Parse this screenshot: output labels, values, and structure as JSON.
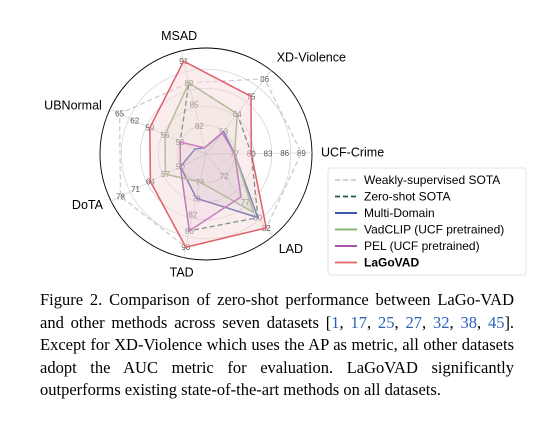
{
  "chart_data": {
    "type": "radar",
    "axes": [
      "MSAD",
      "XD-Violence",
      "UCF-Crime",
      "LAD",
      "TAD",
      "DoTA",
      "UBNormal"
    ],
    "tick_labels": [
      [
        "82",
        "85",
        "88",
        "91"
      ],
      [
        "53",
        "64",
        "75",
        "86"
      ],
      [
        "77",
        "80",
        "83",
        "86",
        "89"
      ],
      [
        "72",
        "77",
        "80",
        "82"
      ],
      [
        "74",
        "78",
        "82",
        "86",
        "90"
      ],
      [
        "50",
        "57",
        "64",
        "71",
        "78"
      ],
      [
        "53",
        "56",
        "59",
        "62",
        "65"
      ]
    ],
    "series": [
      {
        "name": "Weakly-supervised SOTA",
        "style": "dashed",
        "color": "#cccccc",
        "values": [
          88,
          86,
          89,
          82,
          90,
          78,
          65
        ]
      },
      {
        "name": "Zero-shot SOTA",
        "style": "dashed",
        "color": "#1f5a4d",
        "values": [
          88,
          64,
          80,
          80,
          86,
          50,
          53
        ]
      },
      {
        "name": "Multi-Domain",
        "style": "solid",
        "color": "#2140a0",
        "values": [
          79,
          53,
          77,
          80,
          78,
          50,
          50
        ]
      },
      {
        "name": "VadCLIP (UCF pretrained)",
        "style": "solid",
        "color": "#7fad69",
        "values": [
          88,
          64,
          77,
          79,
          74,
          57,
          56
        ]
      },
      {
        "name": "PEL (UCF pretrained)",
        "style": "solid",
        "color": "#9b3aa3",
        "values": [
          79,
          52,
          77,
          76,
          86,
          50,
          53
        ]
      },
      {
        "name": "LaGoVAD",
        "style": "solid",
        "color": "#e0606a",
        "values": [
          91,
          75,
          80,
          82,
          90,
          64,
          59
        ]
      }
    ],
    "legend_position": "right"
  },
  "caption": {
    "label": "Figure 2.",
    "text_before": "Comparison of zero-shot performance between LaGo-VAD and other methods across seven datasets [",
    "refs": [
      "1",
      "17",
      "25",
      "27",
      "32",
      "38",
      "45"
    ],
    "text_after": "].  Except for XD-Violence which uses the AP as metric, all other datasets adopt the AUC metric for evaluation. LaGoVAD significantly outperforms existing state-of-the-art methods on all datasets."
  },
  "colors": {
    "grid": "#cfcfcf",
    "lagovad_fill": "#f6d4d6",
    "citation": "#2a62b5"
  }
}
